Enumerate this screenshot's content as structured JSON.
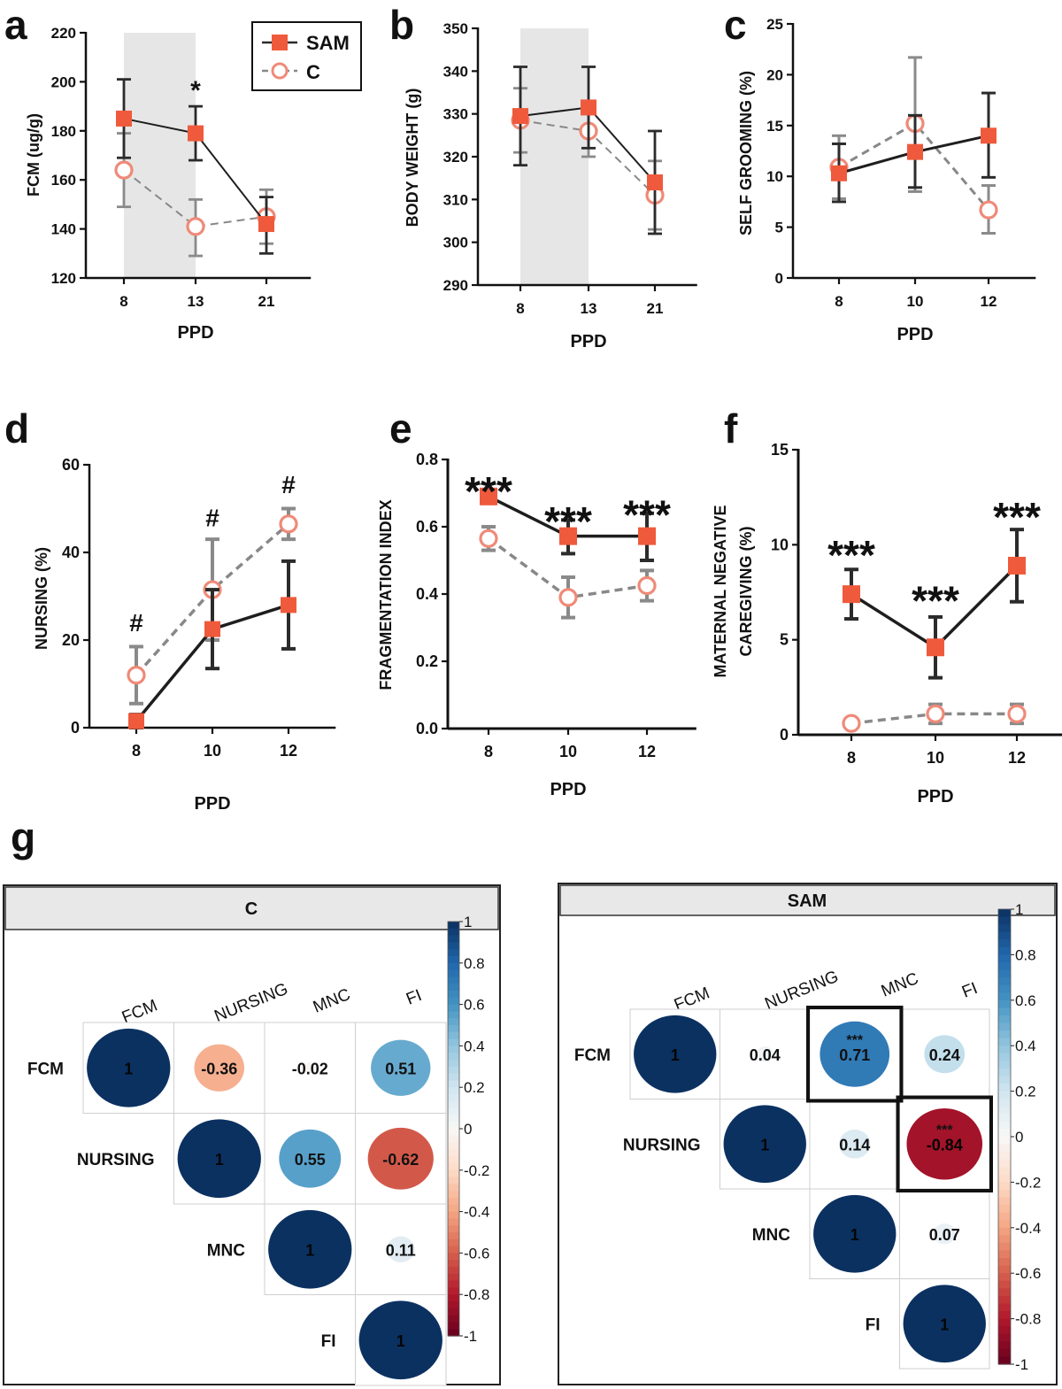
{
  "chart_data": [
    {
      "id": "a",
      "panel_label": "a",
      "type": "line",
      "title": "",
      "xlabel": "PPD",
      "ylabel": "FCM (ug/g)",
      "categories": [
        "8",
        "13",
        "21"
      ],
      "ylim": [
        120,
        220
      ],
      "yticks": [
        "120",
        "140",
        "160",
        "180",
        "200",
        "220"
      ],
      "shaded_range": [
        "8",
        "13"
      ],
      "legend": {
        "placement": "top-right",
        "entries": [
          "SAM",
          "C"
        ]
      },
      "series": [
        {
          "name": "SAM",
          "values": [
            185,
            179,
            142
          ],
          "err_low": [
            169,
            168,
            130
          ],
          "err_high": [
            201,
            190,
            153
          ]
        },
        {
          "name": "C",
          "values": [
            164,
            141,
            145
          ],
          "err_low": [
            149,
            129,
            134
          ],
          "err_high": [
            179,
            152,
            156
          ]
        }
      ],
      "annotations": [
        {
          "text": "*",
          "category": "13",
          "y": 193
        }
      ]
    },
    {
      "id": "b",
      "panel_label": "b",
      "type": "line",
      "title": "",
      "xlabel": "PPD",
      "ylabel": "BODY WEIGHT (g)",
      "categories": [
        "8",
        "13",
        "21"
      ],
      "ylim": [
        290,
        350
      ],
      "yticks": [
        "290",
        "300",
        "310",
        "320",
        "330",
        "340",
        "350"
      ],
      "shaded_range": [
        "8",
        "13"
      ],
      "series": [
        {
          "name": "SAM",
          "values": [
            329.5,
            331.5,
            314
          ],
          "err_low": [
            318,
            322,
            302
          ],
          "err_high": [
            341,
            341,
            326
          ]
        },
        {
          "name": "C",
          "values": [
            328.5,
            326,
            311
          ],
          "err_low": [
            321,
            320,
            303
          ],
          "err_high": [
            336,
            332,
            319
          ]
        }
      ],
      "annotations": []
    },
    {
      "id": "c",
      "panel_label": "c",
      "type": "line",
      "title": "",
      "xlabel": "PPD",
      "ylabel": "SELF GROOMING (%)",
      "categories": [
        "8",
        "10",
        "12"
      ],
      "ylim": [
        0,
        25
      ],
      "yticks": [
        "0",
        "5",
        "10",
        "15",
        "20",
        "25"
      ],
      "series": [
        {
          "name": "SAM",
          "values": [
            10.3,
            12.4,
            14
          ],
          "err_low": [
            7.5,
            8.9,
            9.9
          ],
          "err_high": [
            13.2,
            16,
            18.2
          ]
        },
        {
          "name": "C",
          "values": [
            10.9,
            15.2,
            6.7
          ],
          "err_low": [
            7.8,
            8.5,
            4.4
          ],
          "err_high": [
            14,
            21.7,
            9.1
          ]
        }
      ],
      "annotations": []
    },
    {
      "id": "d",
      "panel_label": "d",
      "type": "line",
      "title": "",
      "xlabel": "PPD",
      "ylabel": "NURSING (%)",
      "categories": [
        "8",
        "10",
        "12"
      ],
      "ylim": [
        0,
        60
      ],
      "yticks": [
        "0",
        "20",
        "40",
        "60"
      ],
      "series": [
        {
          "name": "SAM",
          "values": [
            1.5,
            22.5,
            28
          ],
          "err_low": [
            0,
            13.5,
            18
          ],
          "err_high": [
            3,
            31.5,
            38
          ]
        },
        {
          "name": "C",
          "values": [
            12,
            31.5,
            46.5
          ],
          "err_low": [
            5.5,
            20,
            43
          ],
          "err_high": [
            18.5,
            43,
            50
          ]
        }
      ],
      "annotations": [
        {
          "text": "#",
          "category": "8",
          "y": 22
        },
        {
          "text": "#",
          "category": "10",
          "y": 46
        },
        {
          "text": "#",
          "category": "12",
          "y": 53.5
        }
      ]
    },
    {
      "id": "e",
      "panel_label": "e",
      "type": "line",
      "title": "",
      "xlabel": "PPD",
      "ylabel": "FRAGMENTATION INDEX",
      "categories": [
        "8",
        "10",
        "12"
      ],
      "ylim": [
        0,
        0.8
      ],
      "yticks": [
        "0.0",
        "0.2",
        "0.4",
        "0.6",
        "0.8"
      ],
      "series": [
        {
          "name": "SAM",
          "values": [
            0.69,
            0.572,
            0.572
          ],
          "err_low": [
            0.67,
            0.52,
            0.5
          ],
          "err_high": [
            0.71,
            0.62,
            0.64
          ]
        },
        {
          "name": "C",
          "values": [
            0.565,
            0.39,
            0.425
          ],
          "err_low": [
            0.53,
            0.33,
            0.38
          ],
          "err_high": [
            0.6,
            0.45,
            0.47
          ]
        }
      ],
      "annotations": [
        {
          "text": "***",
          "category": "8",
          "y": 0.73
        },
        {
          "text": "***",
          "category": "10",
          "y": 0.64
        },
        {
          "text": "***",
          "category": "12",
          "y": 0.66
        }
      ]
    },
    {
      "id": "f",
      "panel_label": "f",
      "type": "line",
      "title": "",
      "xlabel": "PPD",
      "ylabel": "MATERNAL NEGATIVE\nCAREGIVING (%)",
      "categories": [
        "8",
        "10",
        "12"
      ],
      "ylim": [
        0,
        15
      ],
      "yticks": [
        "0",
        "5",
        "10",
        "15"
      ],
      "series": [
        {
          "name": "SAM",
          "values": [
            7.4,
            4.6,
            8.9
          ],
          "err_low": [
            6.1,
            3.0,
            7.0
          ],
          "err_high": [
            8.7,
            6.2,
            10.8
          ]
        },
        {
          "name": "C",
          "values": [
            0.6,
            1.1,
            1.1
          ],
          "err_low": [
            0.5,
            0.6,
            0.6
          ],
          "err_high": [
            0.7,
            1.6,
            1.6
          ]
        }
      ],
      "annotations": [
        {
          "text": "***",
          "category": "8",
          "y": 9.9
        },
        {
          "text": "***",
          "category": "10",
          "y": 7.5
        },
        {
          "text": "***",
          "category": "12",
          "y": 11.9
        }
      ]
    },
    {
      "id": "g-c",
      "type": "heatmap",
      "panel_label": "g",
      "title": "C",
      "variables": [
        "FCM",
        "NURSING",
        "MNC",
        "FI"
      ],
      "matrix": [
        [
          1,
          -0.36,
          -0.02,
          0.51
        ],
        [
          null,
          1,
          0.55,
          -0.62
        ],
        [
          null,
          null,
          1,
          0.11
        ],
        [
          null,
          null,
          null,
          1
        ]
      ],
      "labels": [
        [
          "1",
          "-0.36",
          "-0.02",
          "0.51"
        ],
        [
          "",
          "1",
          "0.55",
          "-0.62"
        ],
        [
          "",
          "",
          "1",
          "0.11"
        ],
        [
          "",
          "",
          "",
          "1"
        ]
      ],
      "significance": [
        [
          "",
          "",
          "",
          ""
        ],
        [
          "",
          "",
          "",
          ""
        ],
        [
          "",
          "",
          "",
          ""
        ],
        [
          "",
          "",
          "",
          ""
        ]
      ],
      "highlighted": [],
      "colorbar_ticks": [
        "1",
        "0.8",
        "0.6",
        "0.4",
        "0.2",
        "0",
        "-0.2",
        "-0.4",
        "-0.6",
        "-0.8",
        "-1"
      ]
    },
    {
      "id": "g-sam",
      "type": "heatmap",
      "title": "SAM",
      "variables": [
        "FCM",
        "NURSING",
        "MNC",
        "FI"
      ],
      "matrix": [
        [
          1,
          0.04,
          0.71,
          0.24
        ],
        [
          null,
          1,
          0.14,
          -0.84
        ],
        [
          null,
          null,
          1,
          0.07
        ],
        [
          null,
          null,
          null,
          1
        ]
      ],
      "labels": [
        [
          "1",
          "0.04",
          "0.71",
          "0.24"
        ],
        [
          "",
          "1",
          "0.14",
          "-0.84"
        ],
        [
          "",
          "",
          "1",
          "0.07"
        ],
        [
          "",
          "",
          "",
          "1"
        ]
      ],
      "significance": [
        [
          "",
          "",
          "***",
          ""
        ],
        [
          "",
          "",
          "",
          "***"
        ],
        [
          "",
          "",
          "",
          ""
        ],
        [
          "",
          "",
          "",
          ""
        ]
      ],
      "highlighted": [
        [
          0,
          2
        ],
        [
          1,
          3
        ]
      ],
      "colorbar_ticks": [
        "1",
        "0.8",
        "0.6",
        "0.4",
        "0.2",
        "0",
        "-0.2",
        "-0.4",
        "-0.6",
        "-0.8",
        "-1"
      ]
    }
  ],
  "colors": {
    "sam": "#ef5a3c",
    "c_marker": "#ef8a78",
    "c_line": "#888888",
    "sam_error": "#2b2b2b",
    "c_error": "#8a8a8a",
    "shade": "#e6e6e6",
    "pos_dark": "#0b3161",
    "neg_dark": "#6a0020"
  }
}
